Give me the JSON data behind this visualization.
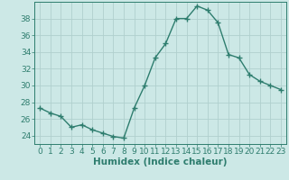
{
  "x": [
    0,
    1,
    2,
    3,
    4,
    5,
    6,
    7,
    8,
    9,
    10,
    11,
    12,
    13,
    14,
    15,
    16,
    17,
    18,
    19,
    20,
    21,
    22,
    23
  ],
  "y": [
    27.3,
    26.7,
    26.3,
    25.0,
    25.3,
    24.7,
    24.3,
    23.9,
    23.7,
    27.3,
    30.0,
    33.3,
    35.0,
    38.0,
    38.0,
    39.5,
    39.0,
    37.5,
    33.7,
    33.3,
    31.3,
    30.5,
    30.0,
    29.5
  ],
  "line_color": "#2e7d6e",
  "marker": "+",
  "marker_size": 4,
  "bg_color": "#cce8e6",
  "grid_color": "#b0d0ce",
  "xlabel": "Humidex (Indice chaleur)",
  "ylim": [
    23,
    40
  ],
  "yticks": [
    24,
    26,
    28,
    30,
    32,
    34,
    36,
    38
  ],
  "xticks": [
    0,
    1,
    2,
    3,
    4,
    5,
    6,
    7,
    8,
    9,
    10,
    11,
    12,
    13,
    14,
    15,
    16,
    17,
    18,
    19,
    20,
    21,
    22,
    23
  ],
  "tick_color": "#2e7d6e",
  "label_color": "#2e7d6e",
  "xlabel_fontsize": 7.5,
  "tick_fontsize": 6.5,
  "linewidth": 1.0,
  "marker_linewidth": 1.0
}
